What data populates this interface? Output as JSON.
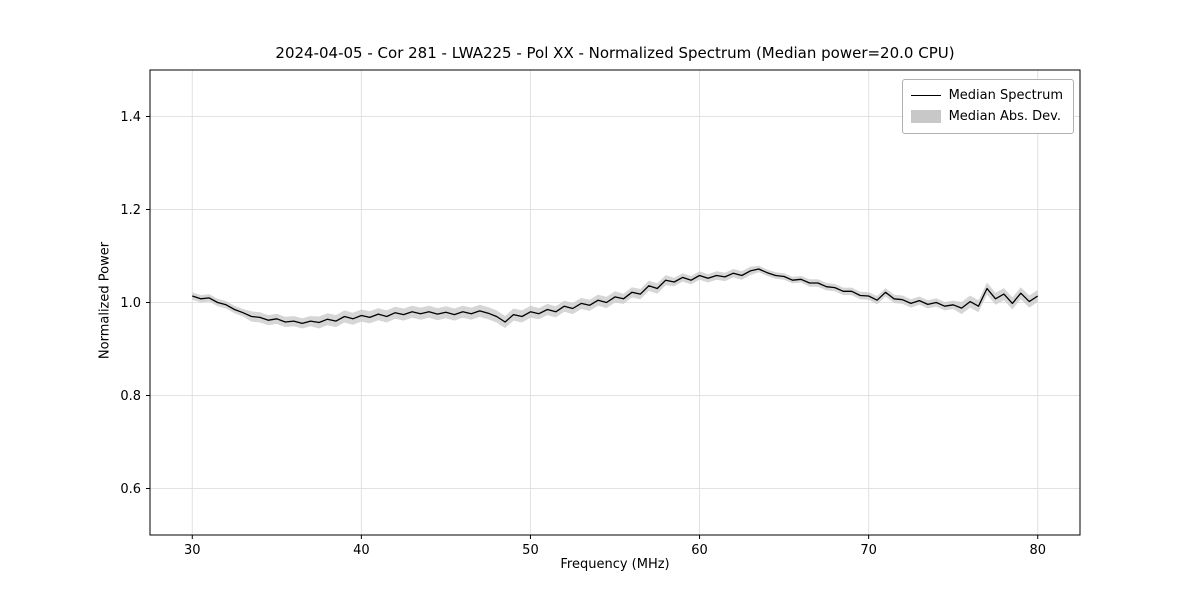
{
  "chart_data": {
    "type": "line",
    "title": "2024-04-05 - Cor 281 - LWA225 - Pol XX - Normalized Spectrum (Median power=20.0 CPU)",
    "xlabel": "Frequency (MHz)",
    "ylabel": "Normalized Power",
    "xlim": [
      27.5,
      82.5
    ],
    "ylim": [
      0.5,
      1.5
    ],
    "xticks": [
      30,
      40,
      50,
      60,
      70,
      80
    ],
    "yticks": [
      0.6,
      0.8,
      1.0,
      1.2,
      1.4
    ],
    "grid": true,
    "legend_position": "upper right",
    "line_color": "#000000",
    "band_color": "#c8c8c8",
    "x_start": 30.0,
    "x_step": 0.5,
    "series": [
      {
        "name": "Median Spectrum",
        "style": "line",
        "values": [
          1.014,
          1.008,
          1.01,
          1.0,
          0.995,
          0.985,
          0.978,
          0.97,
          0.968,
          0.962,
          0.965,
          0.958,
          0.96,
          0.955,
          0.96,
          0.957,
          0.964,
          0.96,
          0.97,
          0.965,
          0.972,
          0.968,
          0.975,
          0.97,
          0.978,
          0.974,
          0.98,
          0.976,
          0.98,
          0.975,
          0.979,
          0.974,
          0.98,
          0.976,
          0.982,
          0.977,
          0.97,
          0.958,
          0.974,
          0.97,
          0.98,
          0.976,
          0.985,
          0.98,
          0.992,
          0.987,
          0.998,
          0.994,
          1.005,
          1.0,
          1.012,
          1.008,
          1.022,
          1.018,
          1.036,
          1.03,
          1.048,
          1.044,
          1.054,
          1.048,
          1.058,
          1.052,
          1.058,
          1.055,
          1.063,
          1.058,
          1.068,
          1.072,
          1.064,
          1.058,
          1.056,
          1.048,
          1.05,
          1.042,
          1.042,
          1.034,
          1.032,
          1.024,
          1.024,
          1.015,
          1.014,
          1.005,
          1.022,
          1.008,
          1.006,
          0.998,
          1.004,
          0.996,
          1.0,
          0.992,
          0.995,
          0.988,
          1.002,
          0.992,
          1.03,
          1.008,
          1.018,
          0.998,
          1.02,
          1.002,
          1.014
        ]
      },
      {
        "name": "Median Abs. Dev.",
        "style": "band",
        "halfwidths": [
          0.008,
          0.008,
          0.008,
          0.008,
          0.008,
          0.008,
          0.008,
          0.011,
          0.011,
          0.011,
          0.011,
          0.011,
          0.011,
          0.011,
          0.011,
          0.013,
          0.013,
          0.013,
          0.013,
          0.013,
          0.013,
          0.013,
          0.013,
          0.013,
          0.013,
          0.013,
          0.013,
          0.013,
          0.013,
          0.013,
          0.013,
          0.013,
          0.013,
          0.013,
          0.013,
          0.013,
          0.013,
          0.013,
          0.013,
          0.013,
          0.013,
          0.012,
          0.012,
          0.012,
          0.012,
          0.012,
          0.012,
          0.012,
          0.012,
          0.012,
          0.012,
          0.011,
          0.011,
          0.011,
          0.011,
          0.011,
          0.011,
          0.009,
          0.009,
          0.009,
          0.009,
          0.009,
          0.009,
          0.009,
          0.009,
          0.009,
          0.009,
          0.007,
          0.007,
          0.007,
          0.007,
          0.007,
          0.007,
          0.008,
          0.008,
          0.008,
          0.008,
          0.008,
          0.008,
          0.008,
          0.008,
          0.009,
          0.009,
          0.009,
          0.009,
          0.009,
          0.009,
          0.009,
          0.009,
          0.009,
          0.009,
          0.013,
          0.013,
          0.013,
          0.013,
          0.013,
          0.013,
          0.013,
          0.013,
          0.013,
          0.013
        ]
      }
    ]
  },
  "legend": {
    "items": [
      {
        "label": "Median Spectrum"
      },
      {
        "label": "Median Abs. Dev."
      }
    ]
  }
}
